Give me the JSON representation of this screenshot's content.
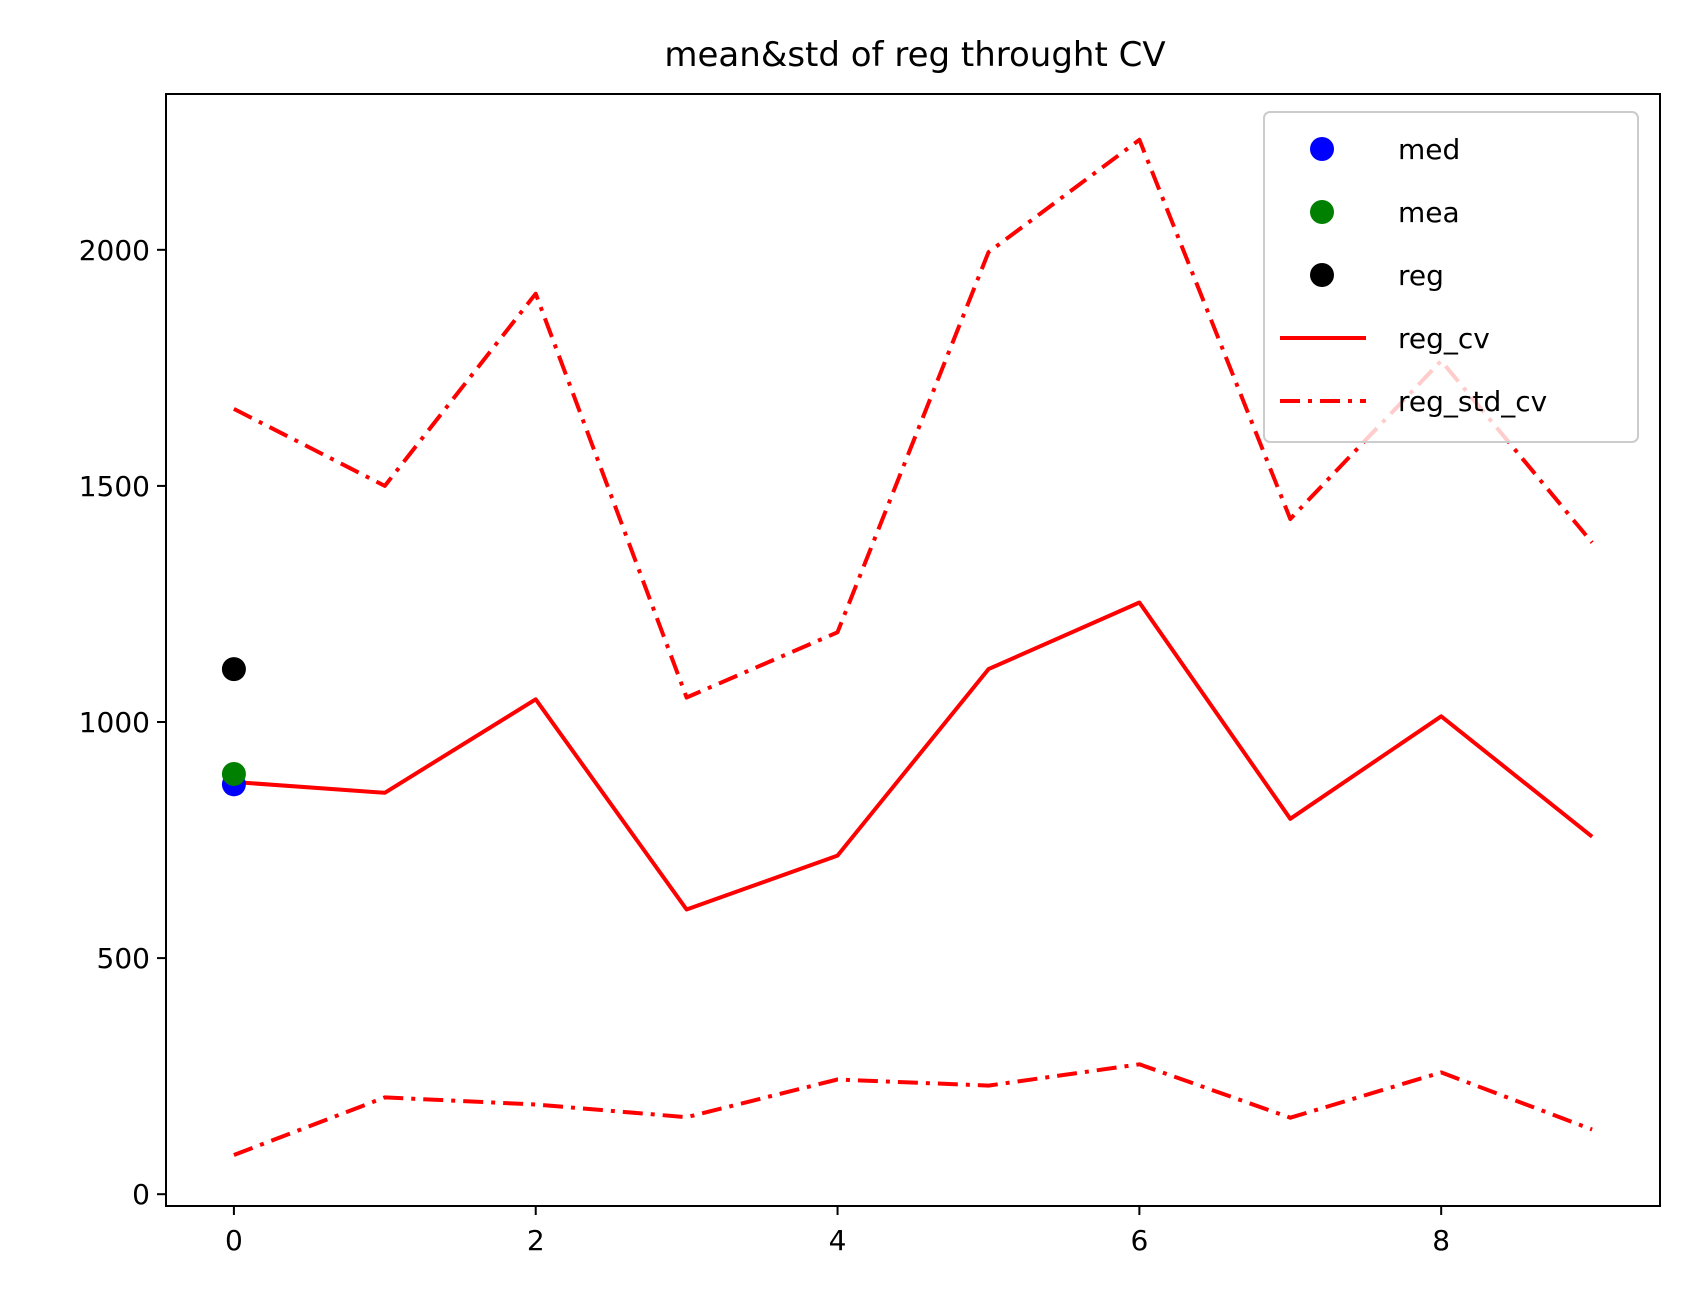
{
  "chart_data": {
    "type": "line",
    "title": "mean&std of reg throught CV",
    "xlabel": "",
    "ylabel": "",
    "xlim": [
      -0.45,
      9.45
    ],
    "ylim": [
      -25,
      2330
    ],
    "xticks": [
      0,
      2,
      4,
      6,
      8
    ],
    "yticks": [
      0,
      500,
      1000,
      1500,
      2000
    ],
    "grid": false,
    "legend_position": "top-right",
    "x": [
      0,
      1,
      2,
      3,
      4,
      5,
      6,
      7,
      8,
      9
    ],
    "series": [
      {
        "name": "reg_cv",
        "style": "solid",
        "color": "#ff0000",
        "values": [
          873,
          850,
          1048,
          603,
          717,
          1112,
          1253,
          795,
          1012,
          757
        ]
      },
      {
        "name": "reg_std_cv",
        "style": "dashdot",
        "color": "#ff0000",
        "values": [
          1663,
          1500,
          1907,
          1052,
          1190,
          1995,
          2233,
          1430,
          1765,
          1380
        ]
      },
      {
        "name": "",
        "style": "dashdot",
        "color": "#ff0000",
        "values": [
          83,
          205,
          190,
          163,
          243,
          230,
          275,
          162,
          258,
          137
        ]
      }
    ],
    "points": [
      {
        "name": "med",
        "color": "#0000ff",
        "x": 0,
        "y": 868
      },
      {
        "name": "mea",
        "color": "#008000",
        "x": 0,
        "y": 890
      },
      {
        "name": "reg",
        "color": "#000000",
        "x": 0,
        "y": 1112
      }
    ],
    "legend": [
      {
        "label": "med",
        "kind": "marker",
        "color": "#0000ff"
      },
      {
        "label": "mea",
        "kind": "marker",
        "color": "#008000"
      },
      {
        "label": "reg",
        "kind": "marker",
        "color": "#000000"
      },
      {
        "label": "reg_cv",
        "kind": "line",
        "style": "solid",
        "color": "#ff0000"
      },
      {
        "label": "reg_std_cv",
        "kind": "line",
        "style": "dashdot",
        "color": "#ff0000"
      }
    ]
  }
}
